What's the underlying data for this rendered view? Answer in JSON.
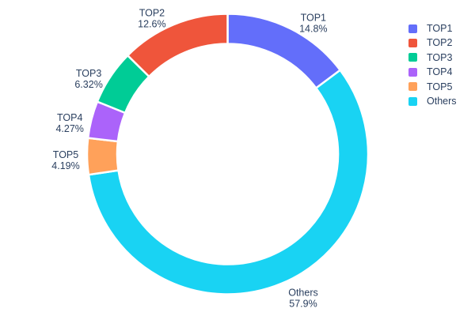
{
  "chart_data": {
    "type": "pie",
    "subtype": "donut",
    "labels": [
      "TOP1",
      "TOP2",
      "TOP3",
      "TOP4",
      "TOP5",
      "Others"
    ],
    "values": [
      14.8,
      12.6,
      6.32,
      4.27,
      4.19,
      57.9
    ],
    "percent_labels": [
      "14.8%",
      "12.6%",
      "6.32%",
      "4.27%",
      "4.19%",
      "57.9%"
    ],
    "colors": [
      "#636EFA",
      "#EF553B",
      "#00CC96",
      "#AB63FA",
      "#FFA15A",
      "#19D3F3"
    ],
    "hole_ratio": 0.786,
    "clockwise_order_from_top": [
      "TOP1",
      "Others",
      "TOP5",
      "TOP4",
      "TOP3",
      "TOP2"
    ],
    "label_position": "outside",
    "text_color": "#2a3f5f",
    "background": "#ffffff",
    "legend": {
      "position": "right",
      "entries": [
        "TOP1",
        "TOP2",
        "TOP3",
        "TOP4",
        "TOP5",
        "Others"
      ]
    }
  }
}
